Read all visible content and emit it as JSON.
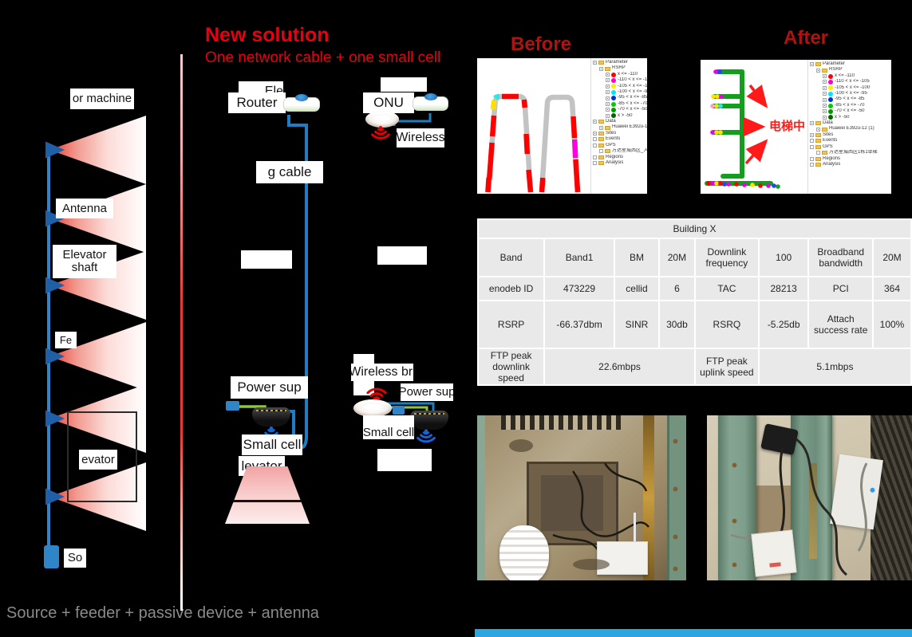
{
  "slide": {
    "new_solution_title": "New solution",
    "new_solution_subtitle": "One network cable + one small cell",
    "before_title": "Before",
    "after_title": "After",
    "bottom_caption": "Source + feeder + passive device + antenna"
  },
  "old_solution": {
    "machine_room_label": "or machine",
    "antenna_label": "Antenna",
    "shaft_label_line1": "Elevator",
    "shaft_label_line2": "shaft",
    "feeder_label": "Fe",
    "car_label": "evator",
    "source_label": "So"
  },
  "cable_column": {
    "top_label": "Ele",
    "router_label": "Router",
    "cable_label": "g cable",
    "power_label": "Power sup",
    "small_cell_label": "Small cell",
    "elevator_label": "levator"
  },
  "bridge_column": {
    "onu_label": "ONU",
    "wireless_label": "Wireless",
    "bridge_label": "Wireless bri",
    "power_label": "Power sup",
    "small_cell_label": "Small cell"
  },
  "legend": {
    "parameter": "Parameter",
    "rsrp": "RSRP",
    "ranges": [
      {
        "color": "#ff0000",
        "label": "x <= -110"
      },
      {
        "color": "#ff00cc",
        "label": "-110 < x <= -105"
      },
      {
        "color": "#ffee00",
        "label": "-105 < x <= -100"
      },
      {
        "color": "#00e5ff",
        "label": "-100 < x <= -95"
      },
      {
        "color": "#0033cc",
        "label": "-95 < x <= -85"
      },
      {
        "color": "#00cc00",
        "label": "-85 < x <= -70"
      },
      {
        "color": "#009900",
        "label": "-70 < x <= -50"
      },
      {
        "color": "#006600",
        "label": "x > -50"
      }
    ],
    "data": "Data",
    "device": "Huawei E392u-12 (1)",
    "sites": "Sites",
    "events": "Events",
    "gps": "GPS",
    "gps_file_before": "万达星城西区_入梯",
    "gps_file_after": "万达星城西区1栋1单梯",
    "regions": "Regions",
    "analysis": "Analysis"
  },
  "after_annotation": "电梯中",
  "table": {
    "title": "Building X",
    "rows": [
      [
        "Band",
        "Band1",
        "BM",
        "20M",
        "Downlink frequency",
        "100",
        "Broadband bandwidth",
        "20M"
      ],
      [
        "enodeb ID",
        "473229",
        "cellid",
        "6",
        "TAC",
        "28213",
        "PCI",
        "364"
      ],
      [
        "RSRP",
        "-66.37dbm",
        "SINR",
        "30db",
        "RSRQ",
        "-5.25db",
        "Attach success rate",
        "100%"
      ]
    ],
    "ftp": {
      "dl_label": "FTP peak downlink speed",
      "dl_value": "22.6mbps",
      "ul_label": "FTP peak uplink speed",
      "ul_value": "5.1mbps"
    }
  },
  "colors": {
    "accent_red": "#e60012",
    "section_title_red": "#ad1411",
    "cable_blue": "#1f7ec2",
    "power_cable_green": "#8cc63f",
    "beam_red": "#e8392f"
  }
}
